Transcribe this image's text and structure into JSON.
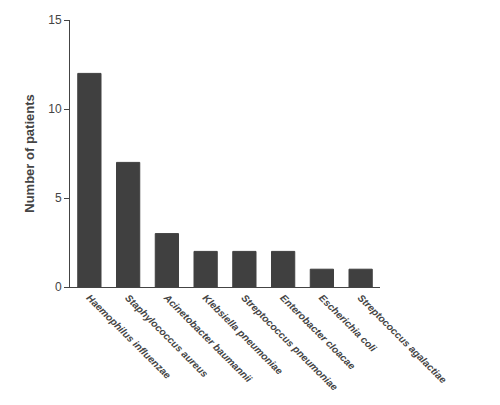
{
  "chart_data": {
    "type": "bar",
    "ylabel": "Number of patients",
    "categories": [
      "Haemophilus influenzae",
      "Staphylococcus aureus",
      "Acinetobacter baumannii",
      "Klebsiella pneumoniae",
      "Streptococcus pneumoniae",
      "Enterobacter cloacae",
      "Escherichia coli",
      "Streptococcus agalactiae"
    ],
    "values": [
      12,
      7,
      3,
      2,
      2,
      2,
      1,
      1
    ],
    "color": "#404040",
    "ylim": [
      0,
      15
    ],
    "yticks": [
      0,
      5,
      10,
      15
    ],
    "grid": false
  }
}
